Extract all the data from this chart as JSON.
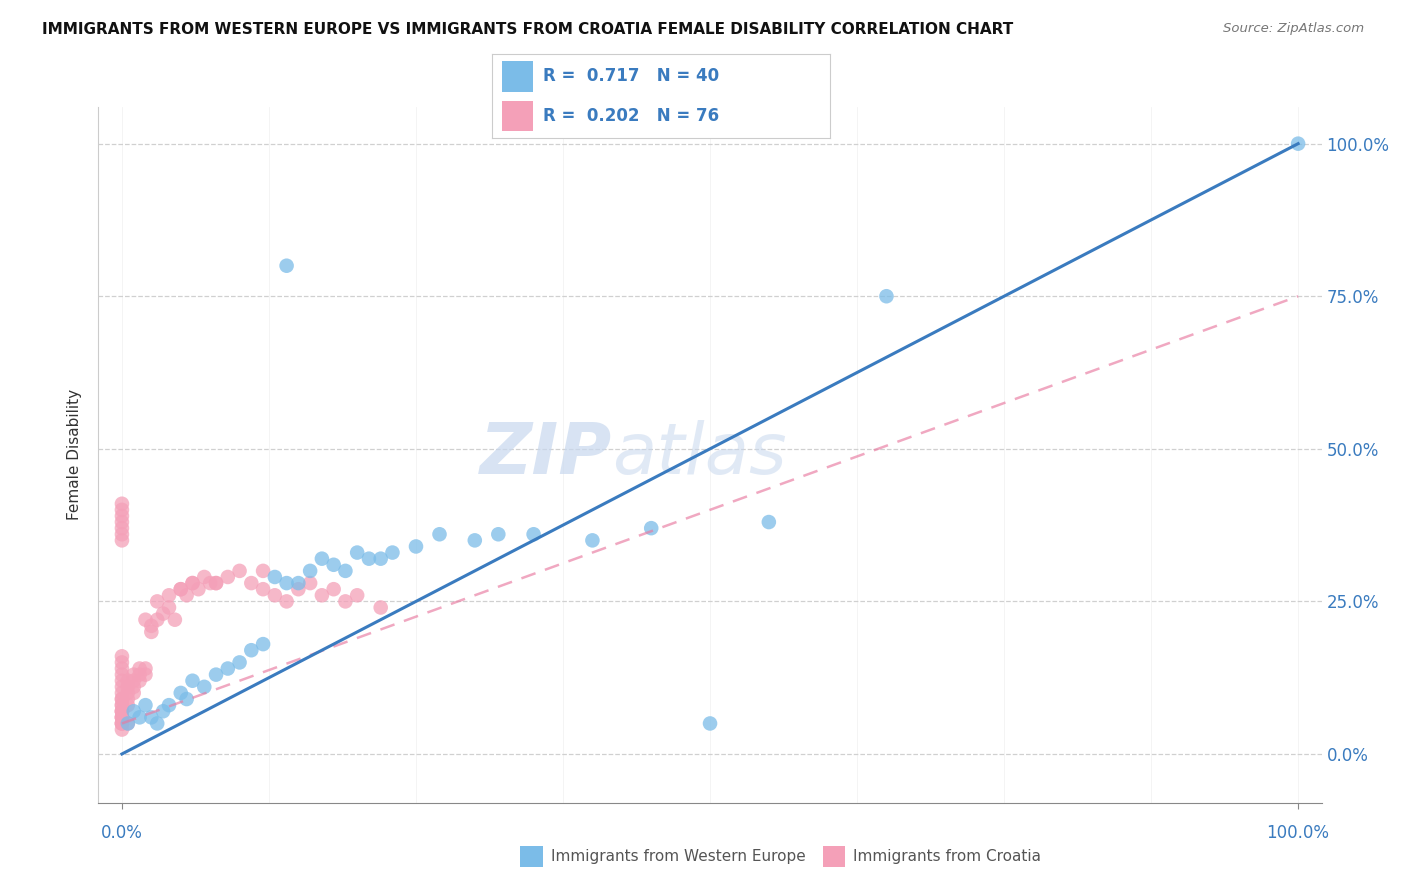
{
  "title": "IMMIGRANTS FROM WESTERN EUROPE VS IMMIGRANTS FROM CROATIA FEMALE DISABILITY CORRELATION CHART",
  "source": "Source: ZipAtlas.com",
  "ylabel": "Female Disability",
  "legend_blue_label": "Immigrants from Western Europe",
  "legend_pink_label": "Immigrants from Croatia",
  "legend_blue_R": "R =  0.717",
  "legend_blue_N": "N = 40",
  "legend_pink_R": "R =  0.202",
  "legend_pink_N": "N = 76",
  "blue_color": "#7bbce8",
  "pink_color": "#f4a0b8",
  "blue_line_color": "#3a7bbf",
  "pink_line_color": "#e87aa0",
  "watermark_zip": "ZIP",
  "watermark_atlas": "atlas",
  "blue_line_x": [
    0,
    100
  ],
  "blue_line_y": [
    0,
    100
  ],
  "pink_line_x": [
    0,
    100
  ],
  "pink_line_y": [
    5,
    75
  ],
  "blue_points_x": [
    0.5,
    1.0,
    1.5,
    2.0,
    2.5,
    3.0,
    3.5,
    4.0,
    5.0,
    5.5,
    6.0,
    7.0,
    8.0,
    9.0,
    10.0,
    11.0,
    12.0,
    13.0,
    14.0,
    15.0,
    16.0,
    17.0,
    18.0,
    19.0,
    20.0,
    21.0,
    22.0,
    23.0,
    25.0,
    27.0,
    30.0,
    32.0,
    35.0,
    40.0,
    45.0,
    50.0,
    55.0,
    65.0,
    100.0,
    14.0
  ],
  "blue_points_y": [
    5.0,
    7.0,
    6.0,
    8.0,
    6.0,
    5.0,
    7.0,
    8.0,
    10.0,
    9.0,
    12.0,
    11.0,
    13.0,
    14.0,
    15.0,
    17.0,
    18.0,
    29.0,
    28.0,
    28.0,
    30.0,
    32.0,
    31.0,
    30.0,
    33.0,
    32.0,
    32.0,
    33.0,
    34.0,
    36.0,
    35.0,
    36.0,
    36.0,
    35.0,
    37.0,
    5.0,
    38.0,
    75.0,
    100.0,
    80.0
  ],
  "pink_points_x": [
    0.0,
    0.0,
    0.0,
    0.0,
    0.0,
    0.0,
    0.0,
    0.0,
    0.0,
    0.0,
    0.0,
    0.0,
    0.0,
    0.0,
    0.0,
    0.0,
    0.0,
    0.0,
    0.0,
    0.0,
    0.0,
    0.0,
    0.0,
    0.0,
    0.0,
    0.0,
    0.0,
    0.0,
    0.5,
    0.5,
    0.5,
    0.5,
    0.5,
    0.5,
    1.0,
    1.0,
    1.0,
    1.0,
    1.5,
    1.5,
    1.5,
    2.0,
    2.0,
    2.5,
    2.5,
    3.0,
    3.5,
    4.0,
    4.5,
    5.0,
    5.5,
    6.0,
    6.5,
    7.0,
    7.5,
    8.0,
    9.0,
    10.0,
    11.0,
    12.0,
    13.0,
    14.0,
    15.0,
    16.0,
    17.0,
    18.0,
    19.0,
    20.0,
    22.0,
    12.0,
    8.0,
    6.0,
    5.0,
    4.0,
    3.0,
    2.0
  ],
  "pink_points_y": [
    5.0,
    6.0,
    7.0,
    8.0,
    9.0,
    10.0,
    11.0,
    12.0,
    13.0,
    14.0,
    15.0,
    16.0,
    5.0,
    6.0,
    7.0,
    8.0,
    9.0,
    36.0,
    37.0,
    38.0,
    39.0,
    40.0,
    41.0,
    35.0,
    5.0,
    4.0,
    6.0,
    7.0,
    8.0,
    9.0,
    10.0,
    11.0,
    12.0,
    5.0,
    10.0,
    11.0,
    12.0,
    13.0,
    12.0,
    13.0,
    14.0,
    13.0,
    14.0,
    20.0,
    21.0,
    22.0,
    23.0,
    24.0,
    22.0,
    27.0,
    26.0,
    28.0,
    27.0,
    29.0,
    28.0,
    28.0,
    29.0,
    30.0,
    28.0,
    27.0,
    26.0,
    25.0,
    27.0,
    28.0,
    26.0,
    27.0,
    25.0,
    26.0,
    24.0,
    30.0,
    28.0,
    28.0,
    27.0,
    26.0,
    25.0,
    22.0
  ],
  "ytick_values": [
    0,
    25,
    50,
    75,
    100
  ],
  "ytick_labels": [
    "0.0%",
    "25.0%",
    "50.0%",
    "75.0%",
    "100.0%"
  ],
  "xlim": [
    -2,
    102
  ],
  "ylim": [
    -8,
    106
  ]
}
